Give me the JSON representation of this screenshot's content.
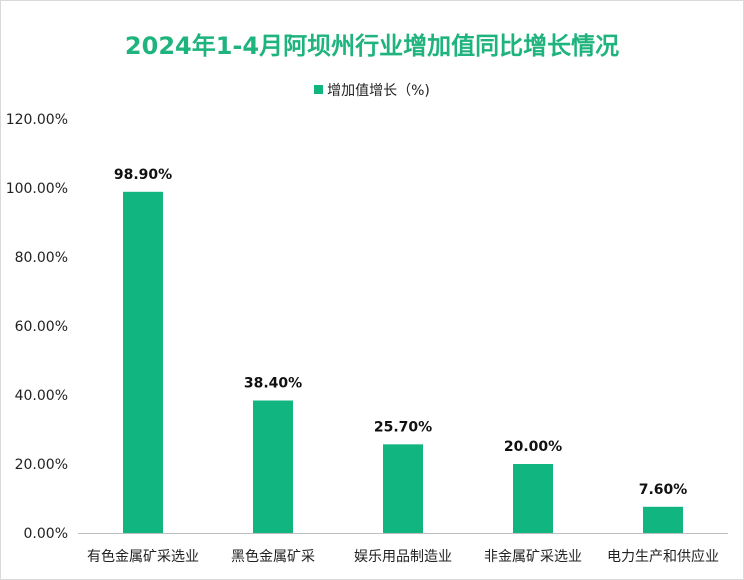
{
  "colors": {
    "title": "#1fb37e",
    "bar": "#11b57f",
    "axis": "#bfbfbf"
  },
  "chart_data": {
    "type": "bar",
    "title": "2024年1-4月阿坝州行业增加值同比增长情况",
    "legend": [
      "增加值增长（%)"
    ],
    "legend_position": "top",
    "categories": [
      "有色金属矿采选业",
      "黑色金属矿采",
      "娱乐用品制造业",
      "非金属矿采选业",
      "电力生产和供应业"
    ],
    "series": [
      {
        "name": "增加值增长（%)",
        "values": [
          98.9,
          38.4,
          25.7,
          20.0,
          7.6
        ]
      }
    ],
    "data_labels": [
      "98.90%",
      "38.40%",
      "25.70%",
      "20.00%",
      "7.60%"
    ],
    "y_ticks": [
      "0.00%",
      "20.00%",
      "40.00%",
      "60.00%",
      "80.00%",
      "100.00%",
      "120.00%"
    ],
    "ylim": [
      0,
      120
    ],
    "xlabel": "",
    "ylabel": "",
    "grid": false
  }
}
